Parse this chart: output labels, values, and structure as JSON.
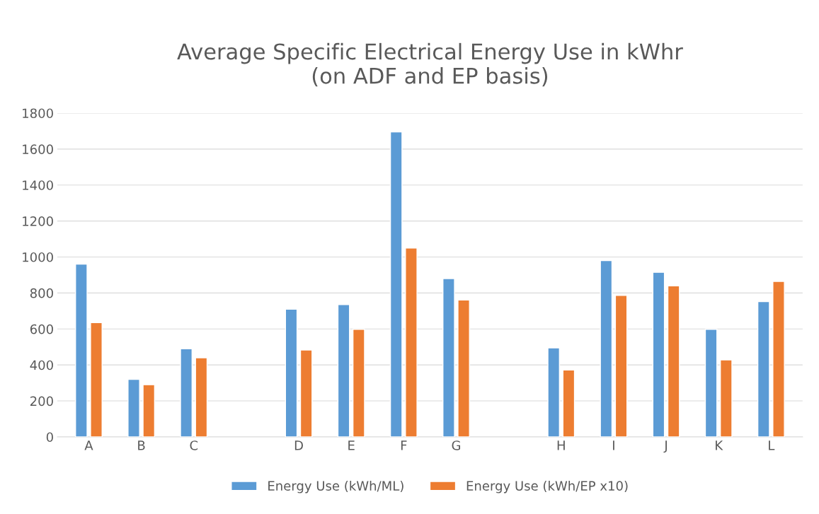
{
  "chart_data": {
    "type": "bar",
    "title": "Average Specific Electrical Energy Use in kWhr\n(on ADF and EP basis)",
    "categories": [
      "A",
      "B",
      "C",
      null,
      "D",
      "E",
      "F",
      "G",
      null,
      "H",
      "I",
      "J",
      "K",
      "L"
    ],
    "series": [
      {
        "name": "Energy Use (kWh/ML)",
        "color": "#5b9bd5",
        "values": [
          960,
          320,
          490,
          null,
          710,
          735,
          1695,
          880,
          null,
          495,
          980,
          915,
          598,
          752
        ]
      },
      {
        "name": "Energy Use (kWh/EP x10)",
        "color": "#ed7d31",
        "values": [
          635,
          290,
          440,
          null,
          483,
          598,
          1050,
          761,
          null,
          372,
          787,
          840,
          428,
          864
        ]
      }
    ],
    "ylim": [
      0,
      1800
    ],
    "yticks": [
      0,
      200,
      400,
      600,
      800,
      1000,
      1200,
      1400,
      1600,
      1800
    ],
    "grid": "y",
    "legend": "bottom"
  }
}
